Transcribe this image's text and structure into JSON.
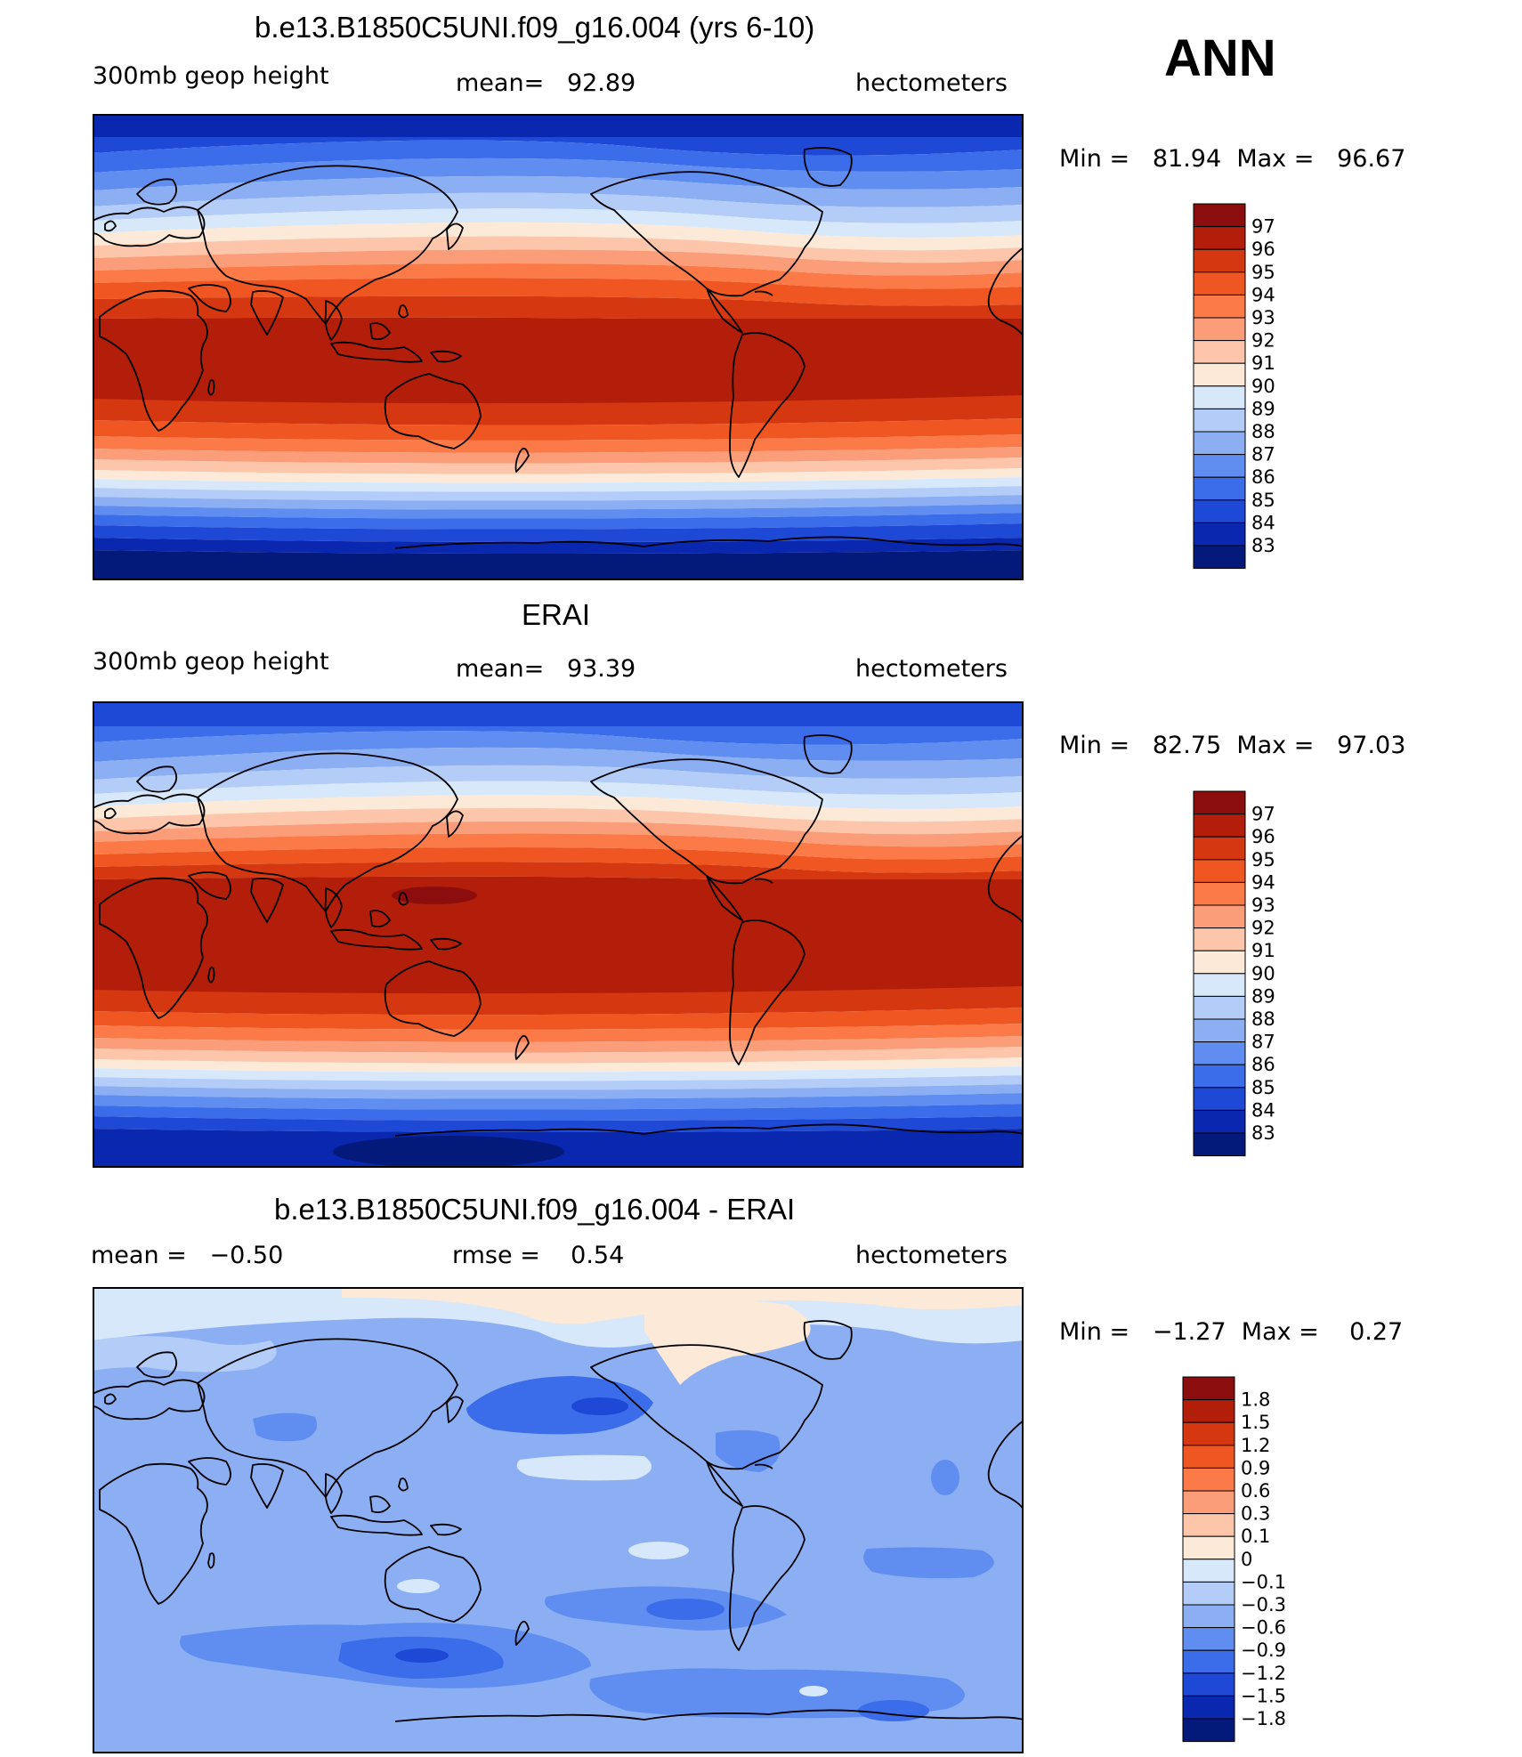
{
  "season": "ANN",
  "units": "hectometers",
  "panels": [
    {
      "title": "b.e13.B1850C5UNI.f09_g16.004 (yrs 6-10)",
      "variable": "300mb geop height",
      "stat_text": "mean=   92.89",
      "units": "hectometers",
      "minmax_text": "Min =   81.94  Max =   96.67",
      "colorbar_labels": [
        "97",
        "96",
        "95",
        "94",
        "93",
        "92",
        "91",
        "90",
        "89",
        "88",
        "87",
        "86",
        "85",
        "84",
        "83"
      ],
      "colorbar_colors": [
        "#8c0d0d",
        "#b21e0a",
        "#d53811",
        "#ef5622",
        "#fb7a47",
        "#fb9d78",
        "#fdc6aa",
        "#fde9d7",
        "#d8e8fb",
        "#b3cdf8",
        "#8caef3",
        "#5f8ef0",
        "#3b6cea",
        "#1e48d6",
        "#0a27b0",
        "#031a7a"
      ]
    },
    {
      "title": "ERAI",
      "variable": "300mb geop height",
      "stat_text": "mean=   93.39",
      "units": "hectometers",
      "minmax_text": "Min =   82.75  Max =   97.03",
      "colorbar_labels": [
        "97",
        "96",
        "95",
        "94",
        "93",
        "92",
        "91",
        "90",
        "89",
        "88",
        "87",
        "86",
        "85",
        "84",
        "83"
      ],
      "colorbar_colors": [
        "#8c0d0d",
        "#b21e0a",
        "#d53811",
        "#ef5622",
        "#fb7a47",
        "#fb9d78",
        "#fdc6aa",
        "#fde9d7",
        "#d8e8fb",
        "#b3cdf8",
        "#8caef3",
        "#5f8ef0",
        "#3b6cea",
        "#1e48d6",
        "#0a27b0",
        "#031a7a"
      ]
    },
    {
      "title": "b.e13.B1850C5UNI.f09_g16.004 - ERAI",
      "variable": "mean =   −0.50",
      "stat_text": "rmse =    0.54",
      "units": "hectometers",
      "minmax_text": "Min =   −1.27  Max =    0.27",
      "colorbar_labels": [
        "1.8",
        "1.5",
        "1.2",
        "0.9",
        "0.6",
        "0.3",
        "0.1",
        "0",
        "−0.1",
        "−0.3",
        "−0.6",
        "−0.9",
        "−1.2",
        "−1.5",
        "−1.8"
      ],
      "colorbar_colors": [
        "#8c0d0d",
        "#b21e0a",
        "#d53811",
        "#ef5622",
        "#fb7a47",
        "#fb9d78",
        "#fdc6aa",
        "#fde9d7",
        "#d8e8fb",
        "#b3cdf8",
        "#8caef3",
        "#5f8ef0",
        "#3b6cea",
        "#1e48d6",
        "#0a27b0",
        "#031a7a"
      ]
    }
  ],
  "map_colors": {
    "deep_red": "#8c0d0d",
    "dark_red": "#b21e0a",
    "red": "#d53811",
    "light_blue": "#8caef3",
    "mid_blue": "#5f8ef0",
    "blue": "#3b6cea",
    "navy": "#031a7a",
    "pale_peach": "#fde9d7",
    "pale_blue": "#d8e8fb"
  }
}
